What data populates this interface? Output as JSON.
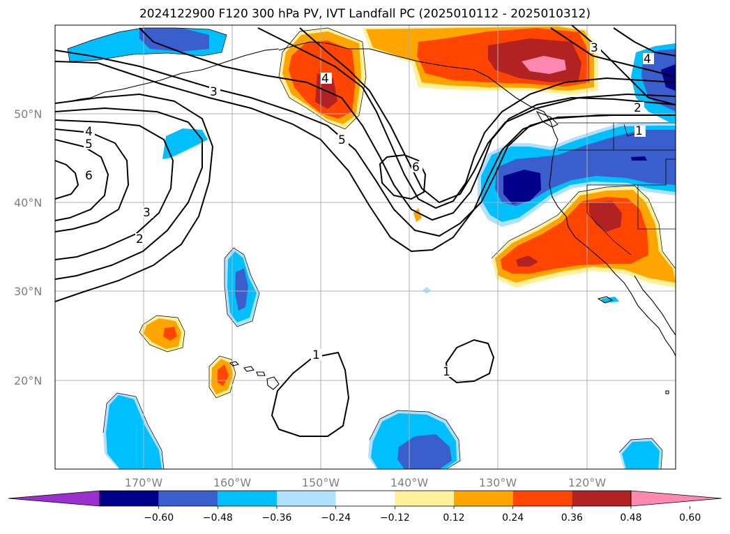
{
  "title": "2024122900 F120 300 hPa PV, IVT Landfall PC (2025010112 - 2025010312)",
  "lat_labels": [
    "50°N",
    "40°N",
    "30°N",
    "20°N"
  ],
  "lon_labels": [
    "170°W",
    "160°W",
    "150°W",
    "140°W",
    "130°W",
    "120°W"
  ],
  "pv_contour_levels": [
    "1",
    "2",
    "3",
    "4",
    "5",
    "6"
  ],
  "colorbar": {
    "tick_labels": [
      "−0.60",
      "−0.48",
      "−0.36",
      "−0.24",
      "−0.12",
      "0.12",
      "0.24",
      "0.36",
      "0.48",
      "0.60"
    ],
    "colors": [
      "#9b30d0",
      "#00008b",
      "#3a5fcd",
      "#00bfff",
      "#b0e2ff",
      "#ffffff",
      "#fff09a",
      "#ffa500",
      "#ff4500",
      "#b22222",
      "#ff88b0"
    ]
  },
  "map": {
    "lon_range": [
      -180,
      -110
    ],
    "lat_range": [
      10,
      60
    ],
    "gridlines": true
  }
}
